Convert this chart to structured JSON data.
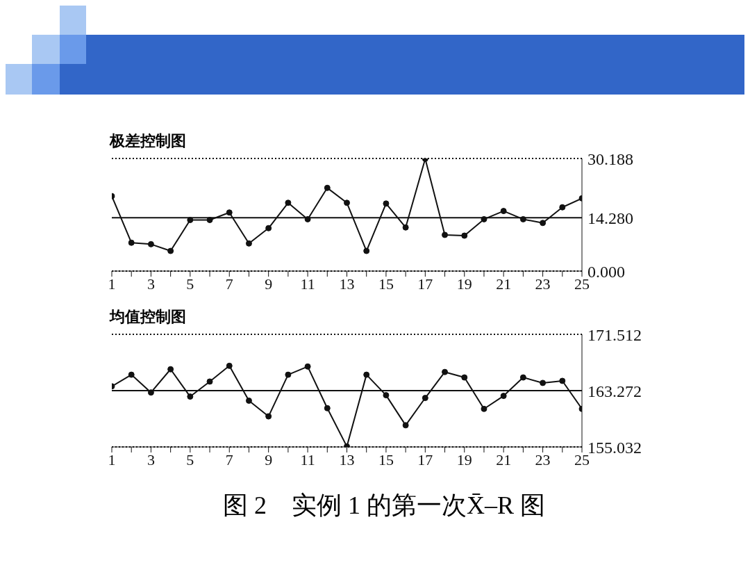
{
  "chart_data": [
    {
      "type": "line",
      "title": "极差控制图",
      "x": [
        1,
        2,
        3,
        4,
        5,
        6,
        7,
        8,
        9,
        10,
        11,
        12,
        13,
        14,
        15,
        16,
        17,
        18,
        19,
        20,
        21,
        22,
        23,
        24,
        25
      ],
      "series": [
        {
          "color": "#111111",
          "values": [
            20.1,
            7.6,
            7.2,
            5.4,
            13.7,
            13.7,
            15.7,
            7.4,
            11.5,
            18.3,
            13.9,
            22.3,
            18.3,
            5.4,
            18.1,
            11.7,
            30.1,
            9.7,
            9.5,
            13.9,
            16.1,
            13.9,
            12.9,
            17.1,
            19.5
          ]
        }
      ],
      "xlim": [
        1,
        25
      ],
      "xticks": [
        1,
        {
          "value": 2,
          "label": null
        },
        3,
        {
          "value": 4,
          "label": null
        },
        5,
        {
          "value": 6,
          "label": null
        },
        7,
        {
          "value": 8,
          "label": null
        },
        9,
        {
          "value": 10,
          "label": null
        },
        11,
        {
          "value": 12,
          "label": null
        },
        13,
        {
          "value": 14,
          "label": null
        },
        15,
        {
          "value": 16,
          "label": null
        },
        17,
        {
          "value": 18,
          "label": null
        },
        19,
        {
          "value": 20,
          "label": null
        },
        21,
        {
          "value": 22,
          "label": null
        },
        23,
        {
          "value": 24,
          "label": null
        },
        25
      ],
      "ylim": [
        0,
        30.188
      ],
      "yticks": [
        {
          "value": 0,
          "label": "0.000"
        },
        {
          "value": 14.28,
          "label": "14.280"
        },
        {
          "value": 30.188,
          "label": "30.188"
        }
      ],
      "ref_lines": [
        {
          "axis": "y",
          "value": 30.188,
          "line_style": "dotted"
        },
        {
          "axis": "y",
          "value": 14.28,
          "line_style": "solid"
        },
        {
          "axis": "y",
          "value": 0,
          "line_style": "dotted"
        }
      ],
      "grid": false,
      "marker": "circle",
      "line_style": "solid"
    },
    {
      "type": "line",
      "title": "均值控制图",
      "x": [
        1,
        2,
        3,
        4,
        5,
        6,
        7,
        8,
        9,
        10,
        11,
        12,
        13,
        14,
        15,
        16,
        17,
        18,
        19,
        20,
        21,
        22,
        23,
        24,
        25
      ],
      "series": [
        {
          "color": "#111111",
          "values": [
            163.9,
            165.6,
            163.0,
            166.4,
            162.4,
            164.6,
            166.9,
            161.8,
            159.5,
            165.6,
            166.8,
            160.7,
            155.1,
            165.6,
            162.6,
            158.2,
            162.2,
            166.0,
            165.2,
            160.6,
            162.5,
            165.2,
            164.4,
            164.7,
            160.6
          ]
        }
      ],
      "xlim": [
        1,
        25
      ],
      "xticks": [
        1,
        {
          "value": 2,
          "label": null
        },
        3,
        {
          "value": 4,
          "label": null
        },
        5,
        {
          "value": 6,
          "label": null
        },
        7,
        {
          "value": 8,
          "label": null
        },
        9,
        {
          "value": 10,
          "label": null
        },
        11,
        {
          "value": 12,
          "label": null
        },
        13,
        {
          "value": 14,
          "label": null
        },
        15,
        {
          "value": 16,
          "label": null
        },
        17,
        {
          "value": 18,
          "label": null
        },
        19,
        {
          "value": 20,
          "label": null
        },
        21,
        {
          "value": 22,
          "label": null
        },
        23,
        {
          "value": 24,
          "label": null
        },
        25
      ],
      "ylim": [
        155.032,
        171.512
      ],
      "yticks": [
        155.032,
        163.272,
        171.512
      ],
      "ref_lines": [
        {
          "axis": "y",
          "value": 171.512,
          "line_style": "dotted"
        },
        {
          "axis": "y",
          "value": 163.272,
          "line_style": "solid"
        },
        {
          "axis": "y",
          "value": 155.032,
          "line_style": "dotted"
        }
      ],
      "annotations": [
        "图 2　实例 1 的第一次X̄–R 图"
      ],
      "grid": false,
      "marker": "circle",
      "line_style": "solid"
    }
  ]
}
